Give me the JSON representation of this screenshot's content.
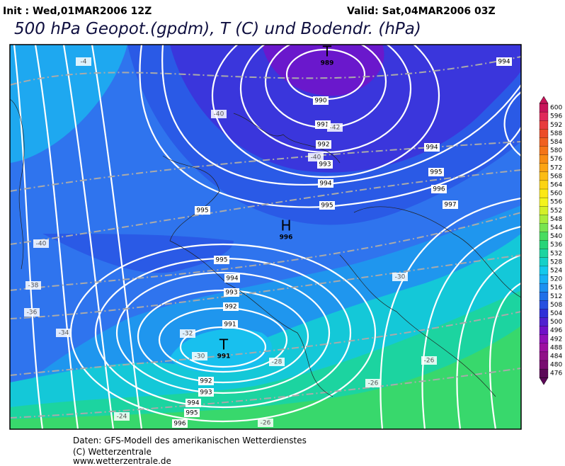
{
  "header": {
    "init": "Init : Wed,01MAR2006 12Z",
    "valid": "Valid: Sat,04MAR2006 03Z",
    "title": "500 hPa Geopot.(gpdm), T (C) und Bodendr. (hPa)"
  },
  "map": {
    "pressure_centers": [
      {
        "symbol": "T",
        "value": 989
      },
      {
        "symbol": "H",
        "value": 996
      },
      {
        "symbol": "T",
        "value": 991
      }
    ],
    "isobar_labels": [
      994,
      990,
      991,
      992,
      993,
      994,
      994,
      995,
      996,
      997,
      995,
      995,
      995,
      994,
      993,
      992,
      991,
      992,
      993,
      994,
      995,
      996
    ],
    "temperature_labels": [
      -4,
      -40,
      -42,
      -40,
      -40,
      -38,
      -36,
      -34,
      -32,
      -30,
      -30,
      -28,
      -26,
      -26,
      -26,
      -24
    ]
  },
  "colorbar": {
    "labels": [
      600,
      596,
      592,
      588,
      584,
      580,
      576,
      572,
      568,
      564,
      560,
      556,
      552,
      548,
      544,
      540,
      536,
      532,
      528,
      524,
      520,
      516,
      512,
      508,
      504,
      500,
      496,
      492,
      488,
      484,
      480,
      476
    ],
    "colors": [
      "#c8145a",
      "#e02a5a",
      "#e83c3c",
      "#ec4c28",
      "#f06020",
      "#f47418",
      "#f88c14",
      "#fca414",
      "#fcbc14",
      "#fcd414",
      "#fce814",
      "#f4f41c",
      "#d4f028",
      "#a8ec3c",
      "#78e450",
      "#48dc60",
      "#28d478",
      "#1cd4a0",
      "#14d0c8",
      "#14c8ec",
      "#18b0f4",
      "#1c90f0",
      "#2070e8",
      "#2850e0",
      "#3030d8",
      "#5020d0",
      "#7010c8",
      "#9010b8",
      "#9c10a0",
      "#901088",
      "#780c70",
      "#5c0858"
    ]
  },
  "footer": [
    "Daten: GFS-Modell des amerikanischen Wetterdienstes",
    "(C) Wetterzentrale",
    "www.wetterzentrale.de"
  ]
}
